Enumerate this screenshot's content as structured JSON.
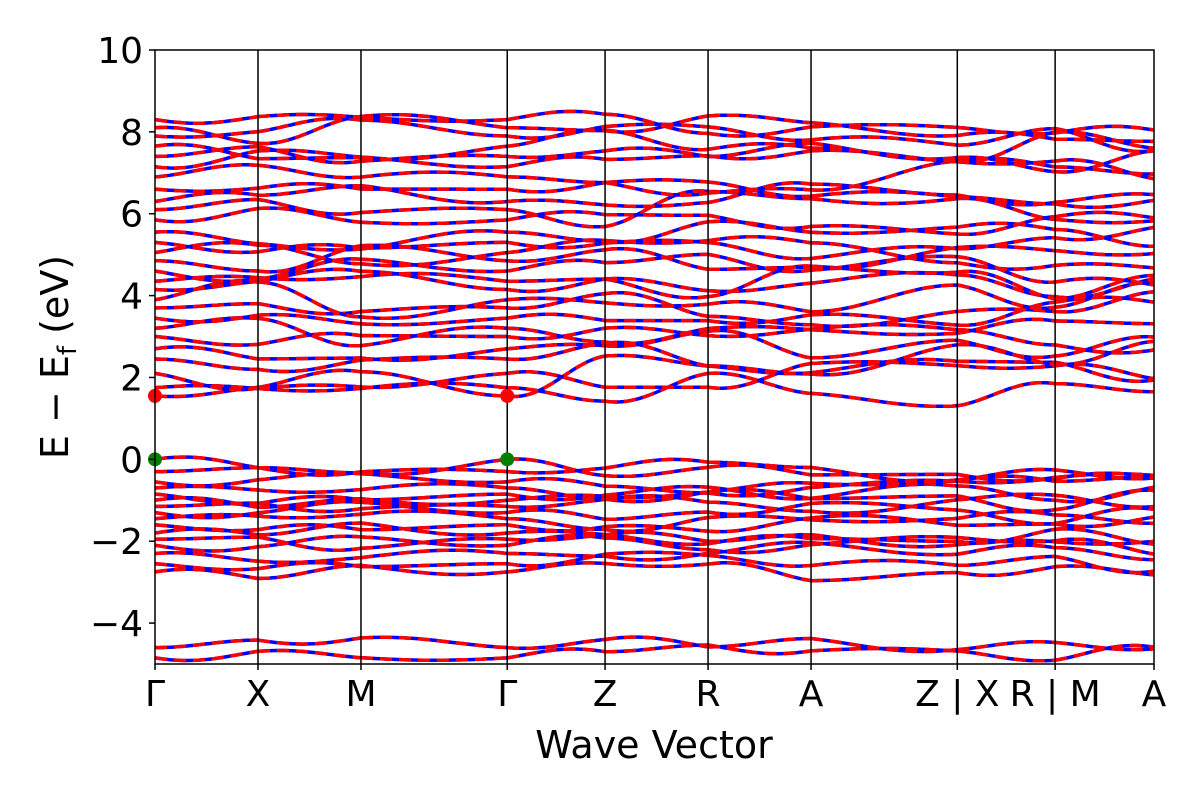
{
  "chart_data": {
    "type": "line",
    "title": "",
    "xlabel": "Wave Vector",
    "ylabel_main": "E − E",
    "ylabel_sub": "f",
    "ylabel_unit": " (eV)",
    "ylim": [
      -5,
      10
    ],
    "yticks": [
      -4,
      -2,
      0,
      2,
      4,
      6,
      8,
      10
    ],
    "ytick_labels": [
      "−4",
      "−2",
      "0",
      "2",
      "4",
      "6",
      "8",
      "10"
    ],
    "xlim": [
      0,
      9.7
    ],
    "kpoints": [
      {
        "label": "Γ",
        "x": 0.0
      },
      {
        "label": "X",
        "x": 1.0
      },
      {
        "label": "M",
        "x": 2.0
      },
      {
        "label": "Γ",
        "x": 3.42
      },
      {
        "label": "Z",
        "x": 4.37
      },
      {
        "label": "R",
        "x": 5.37
      },
      {
        "label": "A",
        "x": 6.37
      },
      {
        "label": "Z | X",
        "x": 7.79
      },
      {
        "label": "R | M",
        "x": 8.74
      },
      {
        "label": "A",
        "x": 9.7
      }
    ],
    "grid": false,
    "series": [
      {
        "role": "spin-down",
        "color": "#0000ff"
      },
      {
        "role": "spin-up",
        "color": "#ff0000"
      }
    ],
    "markers": [
      {
        "kind": "CBM",
        "x": 0.0,
        "y": 1.55,
        "color": "#ff0000"
      },
      {
        "kind": "CBM",
        "x": 3.42,
        "y": 1.55,
        "color": "#ff0000"
      },
      {
        "kind": "VBM",
        "x": 0.0,
        "y": 0.0,
        "color": "#008000"
      },
      {
        "kind": "VBM",
        "x": 3.42,
        "y": 0.0,
        "color": "#008000"
      }
    ],
    "bands_at_gamma": [
      -4.85,
      -4.6,
      -2.75,
      -2.55,
      -2.3,
      -2.1,
      -1.95,
      -1.8,
      -1.6,
      -1.45,
      -1.3,
      -1.15,
      -1.0,
      -0.85,
      -0.7,
      -0.55,
      -0.3,
      0.0,
      1.55,
      1.75,
      2.1,
      2.45,
      2.7,
      3.0,
      3.2,
      3.45,
      3.7,
      3.9,
      4.15,
      4.35,
      4.6,
      4.85,
      5.05,
      5.3,
      5.55,
      5.85,
      6.1,
      6.3,
      6.6,
      6.9,
      7.15,
      7.4,
      7.65,
      7.9,
      8.1,
      8.3
    ]
  }
}
